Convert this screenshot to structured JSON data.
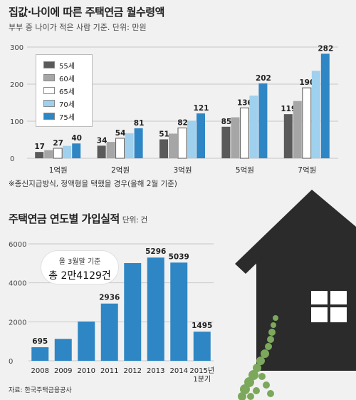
{
  "chart_data": [
    {
      "type": "bar",
      "title": "집값·나이에 따른 주택연금 월수령액",
      "subtitle": "부부 중 나이가 적은 사람 기준. 단위: 만원",
      "note": "※종신지급방식, 정액형을 택했을 경우(올해 2월 기준)",
      "categories": [
        "1억원",
        "2억원",
        "3억원",
        "5억원",
        "7억원"
      ],
      "ylim": [
        0,
        300
      ],
      "yticks": [
        0,
        100,
        200,
        300
      ],
      "legend_placement": "top-left",
      "series": [
        {
          "name": "55세",
          "color": "#5a5a5a",
          "values": [
            17,
            34,
            51,
            85,
            119
          ]
        },
        {
          "name": "60세",
          "color": "#a6a6a6",
          "values": [
            null,
            null,
            null,
            null,
            null
          ]
        },
        {
          "name": "65세",
          "color": "#ffffff",
          "values": [
            27,
            54,
            82,
            136,
            190
          ]
        },
        {
          "name": "70세",
          "color": "#9fd0ee",
          "values": [
            null,
            null,
            null,
            null,
            null
          ]
        },
        {
          "name": "75세",
          "color": "#2f86c4",
          "values": [
            40,
            81,
            121,
            202,
            282
          ]
        }
      ]
    },
    {
      "type": "bar",
      "title": "주택연금 연도별 가입실적",
      "unit": "단위: 건",
      "categories": [
        "2008",
        "2009",
        "2010",
        "2011",
        "2012",
        "2013",
        "2014",
        "2015년\n1분기"
      ],
      "values": [
        695,
        1124,
        2016,
        2936,
        5013,
        5296,
        5039,
        1495
      ],
      "labels": [
        "695",
        "",
        "",
        "2936",
        "",
        "5296",
        "5039",
        "1495"
      ],
      "ylim": [
        0,
        6000
      ],
      "yticks": [
        0,
        2000,
        4000,
        6000
      ],
      "color": "#2f86c4",
      "callout_line1": "올 3월말 기준",
      "callout_line2": "총 2만4129건"
    }
  ],
  "source": "자료: 한국주택금융공사"
}
